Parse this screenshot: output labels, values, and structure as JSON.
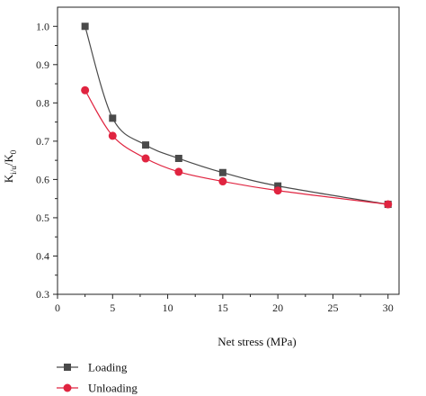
{
  "chart_data": {
    "type": "line",
    "title": "",
    "xlabel": "Net stress (MPa)",
    "ylabel": {
      "base": "K",
      "base_sub": "i/u",
      "sep": "/K",
      "sep_sub": "0"
    },
    "xlim": [
      0,
      31
    ],
    "ylim": [
      0.3,
      1.05
    ],
    "xticks": [
      0,
      5,
      10,
      15,
      20,
      25,
      30
    ],
    "yticks": [
      0.3,
      0.4,
      0.5,
      0.6,
      0.7,
      0.8,
      0.9,
      1.0
    ],
    "xtick_labels": [
      "0",
      "5",
      "10",
      "15",
      "20",
      "25",
      "30"
    ],
    "ytick_labels": [
      "0.3",
      "0.4",
      "0.5",
      "0.6",
      "0.7",
      "0.8",
      "0.9",
      "1.0"
    ],
    "grid": false,
    "legend_position": "bottom-left",
    "series": [
      {
        "name": "Loading",
        "marker": "square",
        "color": "#4a4a4a",
        "x": [
          2.5,
          5,
          8,
          11,
          15,
          20,
          30
        ],
        "y": [
          1.0,
          0.76,
          0.69,
          0.655,
          0.618,
          0.583,
          0.535
        ]
      },
      {
        "name": "Unloading",
        "marker": "circle",
        "color": "#e02440",
        "x": [
          2.5,
          5,
          8,
          11,
          15,
          20,
          30
        ],
        "y": [
          0.833,
          0.714,
          0.655,
          0.62,
          0.595,
          0.571,
          0.535
        ]
      }
    ]
  }
}
